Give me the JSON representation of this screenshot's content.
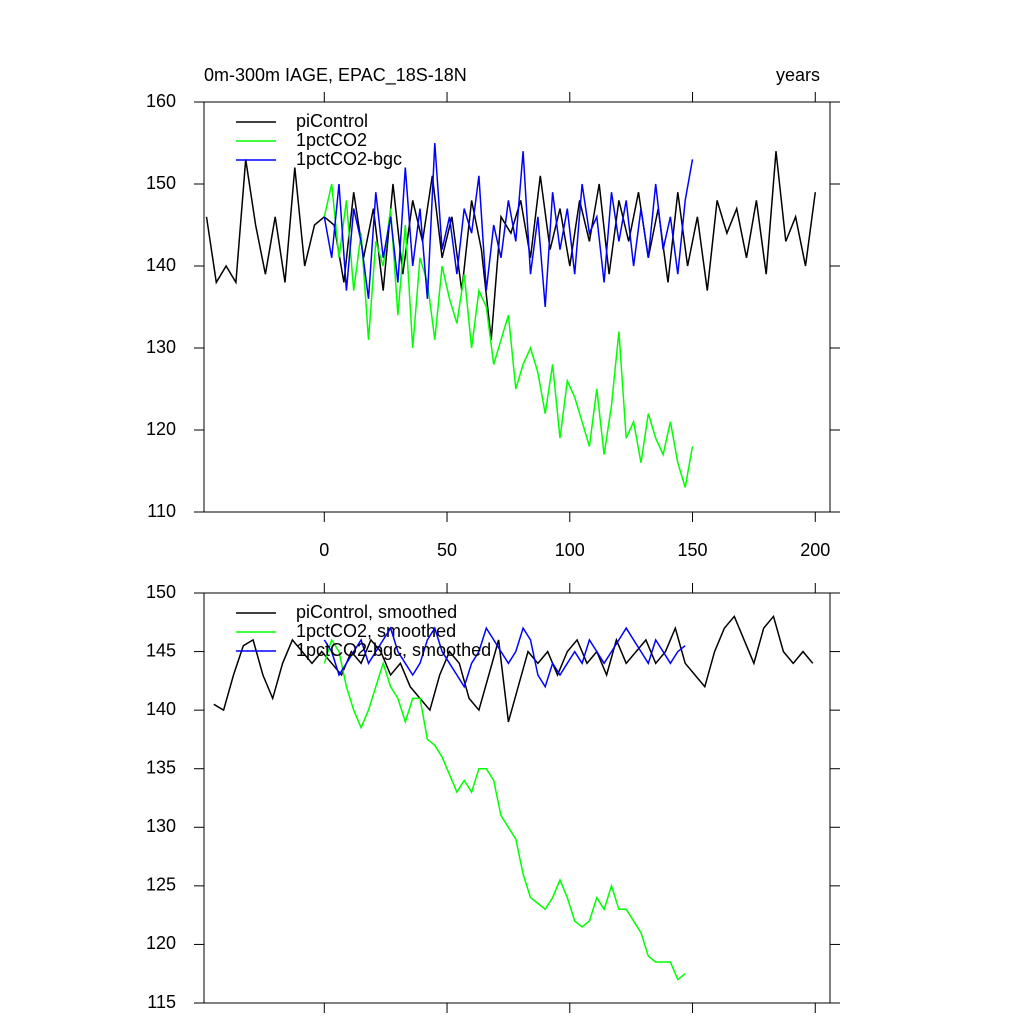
{
  "chart_data": [
    {
      "type": "line",
      "title": "0m-300m IAGE, EPAC_18S-18N",
      "right_title": "years",
      "legend": "upper left",
      "xlim": [
        -49,
        206
      ],
      "xticks": [
        0,
        50,
        100,
        150,
        200
      ],
      "xtick_labels": true,
      "ylim": [
        110,
        160
      ],
      "yticks": [
        110,
        120,
        130,
        140,
        150,
        160
      ],
      "series": [
        {
          "name": "piControl",
          "color": "#000000",
          "x": [
            -48,
            -44,
            -40,
            -36,
            -32,
            -28,
            -24,
            -20,
            -16,
            -12,
            -8,
            -4,
            0,
            4,
            8,
            12,
            16,
            20,
            24,
            28,
            32,
            36,
            40,
            44,
            48,
            52,
            56,
            60,
            64,
            68,
            72,
            76,
            80,
            84,
            88,
            92,
            96,
            100,
            104,
            108,
            112,
            116,
            120,
            124,
            128,
            132,
            136,
            140,
            144,
            148,
            152,
            156,
            160,
            164,
            168,
            172,
            176,
            180,
            184,
            188,
            192,
            196,
            200
          ],
          "values": [
            146,
            138,
            140,
            138,
            153,
            145,
            139,
            146,
            138,
            152,
            140,
            145,
            146,
            145,
            138,
            149,
            141,
            147,
            137,
            150,
            139,
            148,
            143,
            151,
            141,
            146,
            137,
            148,
            142,
            131,
            146,
            144,
            148,
            141,
            151,
            142,
            147,
            140,
            148,
            143,
            150,
            139,
            148,
            143,
            149,
            141,
            147,
            138,
            149,
            140,
            146,
            137,
            148,
            144,
            147,
            141,
            148,
            139,
            154,
            143,
            146,
            140,
            149
          ]
        },
        {
          "name": "1pctCO2",
          "color": "#00ff00",
          "x": [
            0,
            3,
            6,
            9,
            12,
            15,
            18,
            21,
            24,
            27,
            30,
            33,
            36,
            39,
            42,
            45,
            48,
            51,
            54,
            57,
            60,
            63,
            66,
            69,
            72,
            75,
            78,
            81,
            84,
            87,
            90,
            93,
            96,
            99,
            102,
            105,
            108,
            111,
            114,
            117,
            120,
            123,
            126,
            129,
            132,
            135,
            138,
            141,
            144,
            147,
            150
          ],
          "values": [
            146,
            150,
            141,
            148,
            137,
            144,
            131,
            143,
            140,
            147,
            134,
            145,
            130,
            141,
            138,
            131,
            140,
            136,
            133,
            139,
            130,
            137,
            135,
            128,
            131,
            134,
            125,
            128,
            130,
            127,
            122,
            128,
            119,
            126,
            124,
            121,
            118,
            125,
            117,
            123,
            132,
            119,
            121,
            116,
            122,
            119,
            117,
            121,
            116,
            113,
            118
          ]
        },
        {
          "name": "1pctCO2-bgc",
          "color": "#0000ff",
          "x": [
            0,
            3,
            6,
            9,
            12,
            15,
            18,
            21,
            24,
            27,
            30,
            33,
            36,
            39,
            42,
            45,
            48,
            51,
            54,
            57,
            60,
            63,
            66,
            69,
            72,
            75,
            78,
            81,
            84,
            87,
            90,
            93,
            96,
            99,
            102,
            105,
            108,
            111,
            114,
            117,
            120,
            123,
            126,
            129,
            132,
            135,
            138,
            141,
            144,
            147,
            150
          ],
          "values": [
            146,
            141,
            150,
            137,
            147,
            143,
            136,
            149,
            141,
            146,
            138,
            152,
            140,
            147,
            136,
            155,
            142,
            146,
            139,
            147,
            144,
            151,
            137,
            145,
            141,
            148,
            143,
            154,
            139,
            146,
            135,
            149,
            142,
            147,
            139,
            150,
            144,
            146,
            138,
            149,
            143,
            148,
            140,
            147,
            141,
            150,
            142,
            146,
            139,
            148,
            153
          ]
        }
      ]
    },
    {
      "type": "line",
      "legend": "upper left",
      "xlim": [
        -49,
        206
      ],
      "xticks": [
        0,
        50,
        100,
        150,
        200
      ],
      "xtick_labels": false,
      "ylim": [
        115,
        150
      ],
      "yticks": [
        115,
        120,
        125,
        130,
        135,
        140,
        145,
        150
      ],
      "series": [
        {
          "name": "piControl, smoothed",
          "color": "#000000",
          "x": [
            -45,
            -41,
            -37,
            -33,
            -29,
            -25,
            -21,
            -17,
            -13,
            -9,
            -5,
            -1,
            3,
            7,
            11,
            15,
            19,
            23,
            27,
            31,
            35,
            39,
            43,
            47,
            51,
            55,
            59,
            63,
            67,
            71,
            75,
            79,
            83,
            87,
            91,
            95,
            99,
            103,
            107,
            111,
            115,
            119,
            123,
            127,
            131,
            135,
            139,
            143,
            147,
            151,
            155,
            159,
            163,
            167,
            171,
            175,
            179,
            183,
            187,
            191,
            195,
            199
          ],
          "values": [
            140.5,
            140,
            143,
            145.5,
            146,
            143,
            141,
            144,
            146,
            145,
            144,
            145,
            144,
            143,
            145,
            144,
            146,
            145,
            143,
            144,
            142,
            141,
            140,
            143,
            145,
            144,
            141,
            140,
            143,
            146,
            139,
            142,
            145,
            144,
            145,
            143,
            145,
            146,
            144,
            145,
            143,
            146,
            144,
            145,
            146,
            144,
            145,
            147,
            144,
            143,
            142,
            145,
            147,
            148,
            146,
            144,
            147,
            148,
            145,
            144,
            145,
            144
          ]
        },
        {
          "name": "1pctCO2, smoothed",
          "color": "#00ff00",
          "x": [
            0,
            3,
            6,
            9,
            12,
            15,
            18,
            21,
            24,
            27,
            30,
            33,
            36,
            39,
            42,
            45,
            48,
            51,
            54,
            57,
            60,
            63,
            66,
            69,
            72,
            75,
            78,
            81,
            84,
            87,
            90,
            93,
            96,
            99,
            102,
            105,
            108,
            111,
            114,
            117,
            120,
            123,
            126,
            129,
            132,
            135,
            138,
            141,
            144,
            147
          ],
          "values": [
            144,
            146,
            145,
            142,
            140,
            138.5,
            140,
            142,
            144,
            142,
            141,
            139,
            141,
            141,
            137.5,
            137,
            136,
            134.5,
            133,
            134,
            133,
            135,
            135,
            134,
            131,
            130,
            129,
            126,
            124,
            123.5,
            123,
            124,
            125.5,
            124,
            122,
            121.5,
            122,
            124,
            123,
            125,
            123,
            123,
            122,
            121,
            119,
            118.5,
            118.5,
            118.5,
            117,
            117.5
          ]
        },
        {
          "name": "1pctCO2-bgc, smoothed",
          "color": "#0000ff",
          "x": [
            0,
            3,
            6,
            9,
            12,
            15,
            18,
            21,
            24,
            27,
            30,
            33,
            36,
            39,
            42,
            45,
            48,
            51,
            54,
            57,
            60,
            63,
            66,
            69,
            72,
            75,
            78,
            81,
            84,
            87,
            90,
            93,
            96,
            99,
            102,
            105,
            108,
            111,
            114,
            117,
            120,
            123,
            126,
            129,
            132,
            135,
            138,
            141,
            144,
            147
          ],
          "values": [
            146,
            145,
            143,
            144,
            145,
            146,
            144,
            145,
            146,
            147,
            145,
            144,
            143,
            144,
            146,
            147,
            145,
            144,
            143,
            142,
            144,
            145,
            147,
            146,
            145,
            144,
            145,
            147,
            146,
            143,
            142,
            144,
            143,
            144,
            145,
            144,
            146,
            145,
            144,
            145,
            146,
            147,
            146,
            145,
            144,
            146,
            145,
            144,
            145,
            145.5
          ]
        }
      ]
    }
  ]
}
